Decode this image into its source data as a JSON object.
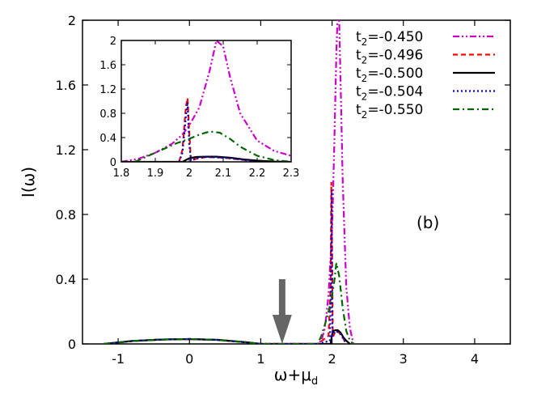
{
  "chart_data": [
    {
      "type": "line",
      "panel": "main",
      "xlabel": "ω+μ",
      "xlabel_sub": "d",
      "ylabel": "I(ω)",
      "xlim": [
        -1.5,
        4.5
      ],
      "ylim": [
        0,
        2
      ],
      "xticks": [
        -1,
        0,
        1,
        2,
        3,
        4
      ],
      "xtick_labels": [
        "-1",
        "0",
        "1",
        "2",
        "3",
        "4"
      ],
      "yticks": [
        0,
        0.4,
        0.8,
        1.2,
        1.6,
        2
      ],
      "ytick_labels": [
        "0",
        "0.4",
        "0.8",
        "1.2",
        "1.6",
        "2"
      ],
      "annotation": "(b)",
      "arrow": {
        "x": 1.3,
        "y_top": 0.4,
        "y_bottom": 0.0
      },
      "grid": false,
      "legend_placement": "top-right",
      "series": [
        {
          "name": "t2=-0.450",
          "name_base": "t",
          "name_sub": "2",
          "name_rest": "=-0.450",
          "color": "#cc00cc",
          "dash": "dash-dot-dot",
          "x": [
            -1.2,
            -0.8,
            -0.4,
            0,
            0.4,
            0.8,
            1.0,
            1.8,
            1.85,
            1.9,
            1.95,
            2.0,
            2.03,
            2.06,
            2.08,
            2.1,
            2.12,
            2.15,
            2.2,
            2.25,
            2.3
          ],
          "y": [
            0,
            0.018,
            0.027,
            0.03,
            0.025,
            0.01,
            0,
            0,
            0.02,
            0.1,
            0.3,
            0.7,
            1.2,
            1.8,
            2.05,
            2.0,
            1.6,
            1.0,
            0.35,
            0.1,
            0
          ]
        },
        {
          "name": "t2=-0.496",
          "name_base": "t",
          "name_sub": "2",
          "name_rest": "=-0.496",
          "color": "#ff0000",
          "dash": "dashed",
          "x": [
            -1.2,
            -0.8,
            -0.4,
            0,
            0.4,
            0.8,
            1.0,
            1.8,
            1.95,
            1.98,
            1.99,
            2.0,
            2.01,
            2.02,
            2.05,
            2.1,
            2.15,
            2.2
          ],
          "y": [
            0,
            0.018,
            0.027,
            0.03,
            0.025,
            0.01,
            0,
            0,
            0.05,
            0.35,
            1.0,
            0.6,
            0.05,
            0.05,
            0.08,
            0.07,
            0.04,
            0
          ]
        },
        {
          "name": "t2=-0.500",
          "name_base": "t",
          "name_sub": "2",
          "name_rest": "=-0.500",
          "color": "#000000",
          "dash": "solid",
          "x": [
            -1.2,
            -0.8,
            -0.4,
            0,
            0.4,
            0.8,
            1.0,
            1.8,
            1.98,
            2.0,
            2.02,
            2.05,
            2.08,
            2.12,
            2.16,
            2.2,
            2.25
          ],
          "y": [
            0,
            0.018,
            0.027,
            0.03,
            0.025,
            0.01,
            0,
            0,
            0.0,
            0.06,
            0.08,
            0.085,
            0.085,
            0.07,
            0.04,
            0.02,
            0
          ]
        },
        {
          "name": "t2=-0.504",
          "name_base": "t",
          "name_sub": "2",
          "name_rest": "=-0.504",
          "color": "#0000cc",
          "dash": "dotted",
          "x": [
            -1.2,
            -0.8,
            -0.4,
            0,
            0.4,
            0.8,
            1.0,
            1.8,
            1.97,
            1.985,
            1.995,
            2.0,
            2.005,
            2.02,
            2.05,
            2.1,
            2.15,
            2.2
          ],
          "y": [
            0,
            0.018,
            0.027,
            0.03,
            0.025,
            0.01,
            0,
            0,
            0.02,
            0.4,
            0.95,
            0.3,
            0.05,
            0.06,
            0.08,
            0.07,
            0.04,
            0
          ]
        },
        {
          "name": "t2=-0.550",
          "name_base": "t",
          "name_sub": "2",
          "name_rest": "=-0.550",
          "color": "#006600",
          "dash": "dash-dot",
          "x": [
            -1.2,
            -0.8,
            -0.4,
            0,
            0.4,
            0.8,
            1.0,
            1.8,
            1.85,
            1.9,
            1.95,
            1.98,
            2.0,
            2.03,
            2.06,
            2.1,
            2.15,
            2.2,
            2.25,
            2.3
          ],
          "y": [
            0,
            0.018,
            0.027,
            0.03,
            0.025,
            0.01,
            0,
            0,
            0.05,
            0.12,
            0.2,
            0.25,
            0.3,
            0.38,
            0.5,
            0.42,
            0.22,
            0.08,
            0.02,
            0
          ]
        }
      ]
    },
    {
      "type": "line",
      "panel": "inset",
      "xlim": [
        1.8,
        2.3
      ],
      "ylim": [
        0,
        2
      ],
      "xticks": [
        1.8,
        1.9,
        2.0,
        2.1,
        2.2,
        2.3
      ],
      "xtick_labels": [
        "1.8",
        "1.9",
        "2",
        "2.1",
        "2.2",
        "2.3"
      ],
      "yticks": [
        0,
        0.4,
        0.8,
        1.2,
        1.6,
        2
      ],
      "ytick_labels": [
        "0",
        "0.4",
        "0.8",
        "1.2",
        "1.6",
        "2"
      ],
      "series": [
        {
          "name": "t2=-0.450",
          "color": "#cc00cc",
          "dash": "dash-dot-dot",
          "x": [
            1.8,
            1.85,
            1.9,
            1.95,
            1.98,
            2.0,
            2.03,
            2.06,
            2.08,
            2.1,
            2.12,
            2.15,
            2.2,
            2.25,
            2.3
          ],
          "y": [
            0,
            0.05,
            0.15,
            0.3,
            0.45,
            0.6,
            0.9,
            1.5,
            2.0,
            1.9,
            1.4,
            0.8,
            0.35,
            0.18,
            0.1
          ]
        },
        {
          "name": "t2=-0.496",
          "color": "#ff0000",
          "dash": "dashed",
          "x": [
            1.97,
            1.98,
            1.99,
            1.995,
            2.0,
            2.005,
            2.02,
            2.05,
            2.1,
            2.15,
            2.2
          ],
          "y": [
            0,
            0.2,
            0.9,
            1.05,
            0.5,
            0.02,
            0.05,
            0.08,
            0.07,
            0.04,
            0
          ]
        },
        {
          "name": "t2=-0.500",
          "color": "#000000",
          "dash": "solid",
          "x": [
            1.8,
            1.98,
            2.0,
            2.02,
            2.05,
            2.08,
            2.12,
            2.16,
            2.2,
            2.25,
            2.3
          ],
          "y": [
            0,
            0,
            0.06,
            0.08,
            0.085,
            0.085,
            0.07,
            0.04,
            0.02,
            0.005,
            0
          ]
        },
        {
          "name": "t2=-0.504",
          "color": "#0000cc",
          "dash": "dotted",
          "x": [
            1.97,
            1.98,
            1.99,
            1.995,
            2.0,
            2.005,
            2.02,
            2.05,
            2.1,
            2.15,
            2.2
          ],
          "y": [
            0,
            0.15,
            0.75,
            0.98,
            0.3,
            0.02,
            0.06,
            0.08,
            0.07,
            0.04,
            0
          ]
        },
        {
          "name": "t2=-0.550",
          "color": "#006600",
          "dash": "dash-dot",
          "x": [
            1.84,
            1.88,
            1.92,
            1.96,
            2.0,
            2.03,
            2.06,
            2.09,
            2.12,
            2.15,
            2.2,
            2.25,
            2.3
          ],
          "y": [
            0,
            0.1,
            0.2,
            0.3,
            0.38,
            0.45,
            0.5,
            0.48,
            0.38,
            0.25,
            0.1,
            0.03,
            0
          ]
        }
      ]
    }
  ]
}
